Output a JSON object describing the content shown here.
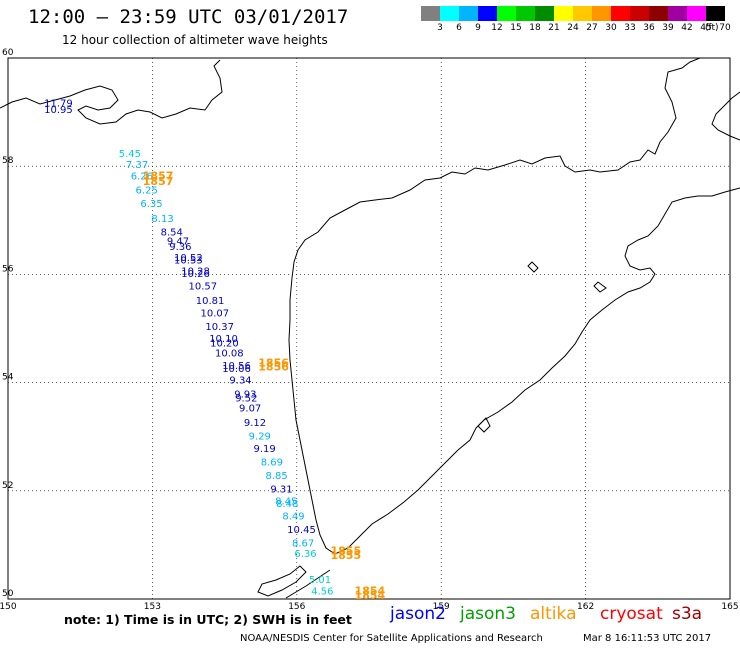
{
  "header": {
    "title": "12:00 — 23:59 UTC 03/01/2017",
    "subtitle": "12 hour collection of altimeter wave heights"
  },
  "color_scale": {
    "unit": "(ft)",
    "steps": [
      {
        "label": "3",
        "color": "#808080"
      },
      {
        "label": "6",
        "color": "#00ffff"
      },
      {
        "label": "9",
        "color": "#00b4ff"
      },
      {
        "label": "12",
        "color": "#0000ff"
      },
      {
        "label": "15",
        "color": "#00ff00"
      },
      {
        "label": "18",
        "color": "#00c800"
      },
      {
        "label": "21",
        "color": "#008c00"
      },
      {
        "label": "24",
        "color": "#ffff00"
      },
      {
        "label": "27",
        "color": "#ffc800"
      },
      {
        "label": "30",
        "color": "#ff9600"
      },
      {
        "label": "33",
        "color": "#ff0000"
      },
      {
        "label": "36",
        "color": "#c80000"
      },
      {
        "label": "39",
        "color": "#8c0000"
      },
      {
        "label": "42",
        "color": "#a000a0"
      },
      {
        "label": "45",
        "color": "#ff00ff"
      },
      {
        "label": "70",
        "color": "#000000"
      }
    ]
  },
  "map": {
    "lon_ticks": [
      "150",
      "153",
      "156",
      "159",
      "162",
      "165"
    ],
    "lat_ticks": [
      "50",
      "52",
      "54",
      "56",
      "58",
      "60"
    ],
    "lon_range": [
      150,
      165
    ],
    "lat_range": [
      50,
      60
    ],
    "grid": "dotted",
    "observations": [
      {
        "text": "11.79",
        "lon": 150.75,
        "lat": 59.1,
        "color": "#0000c8"
      },
      {
        "text": "10.95",
        "lon": 150.75,
        "lat": 58.98,
        "color": "#0000c8"
      },
      {
        "text": "5.45",
        "lon": 152.3,
        "lat": 58.17,
        "color": "#00d2d2"
      },
      {
        "text": "7.37",
        "lon": 152.45,
        "lat": 57.97,
        "color": "#00b4ff"
      },
      {
        "text": "6.26",
        "lon": 152.55,
        "lat": 57.75,
        "color": "#00b4ff"
      },
      {
        "text": "6.25",
        "lon": 152.65,
        "lat": 57.5,
        "color": "#00b4ff"
      },
      {
        "text": "6.35",
        "lon": 152.75,
        "lat": 57.25,
        "color": "#00b4ff"
      },
      {
        "text": "8.13",
        "lon": 152.98,
        "lat": 56.97,
        "color": "#00b4ff"
      },
      {
        "text": "8.54",
        "lon": 153.17,
        "lat": 56.72,
        "color": "#0000c8"
      },
      {
        "text": "9.36",
        "lon": 153.35,
        "lat": 56.45,
        "color": "#0000c8"
      },
      {
        "text": "9.47",
        "lon": 153.3,
        "lat": 56.55,
        "color": "#0000c8"
      },
      {
        "text": "10.53",
        "lon": 153.45,
        "lat": 56.2,
        "color": "#0000c8"
      },
      {
        "text": "10.52",
        "lon": 153.45,
        "lat": 56.25,
        "color": "#0000c8"
      },
      {
        "text": "10.26",
        "lon": 153.6,
        "lat": 55.95,
        "color": "#0000c8"
      },
      {
        "text": "10.28",
        "lon": 153.6,
        "lat": 56.0,
        "color": "#0000c8"
      },
      {
        "text": "10.57",
        "lon": 153.75,
        "lat": 55.72,
        "color": "#0000c8"
      },
      {
        "text": "10.81",
        "lon": 153.9,
        "lat": 55.45,
        "color": "#0000c8"
      },
      {
        "text": "10.07",
        "lon": 154.0,
        "lat": 55.22,
        "color": "#0000c8"
      },
      {
        "text": "10.37",
        "lon": 154.1,
        "lat": 54.97,
        "color": "#0000c8"
      },
      {
        "text": "10.10",
        "lon": 154.18,
        "lat": 54.75,
        "color": "#0000c8"
      },
      {
        "text": "10.20",
        "lon": 154.2,
        "lat": 54.67,
        "color": "#0000c8"
      },
      {
        "text": "10.08",
        "lon": 154.3,
        "lat": 54.48,
        "color": "#0000c8"
      },
      {
        "text": "10.56",
        "lon": 154.45,
        "lat": 54.25,
        "color": "#0000c8"
      },
      {
        "text": "10.06",
        "lon": 154.45,
        "lat": 54.2,
        "color": "#0000c8"
      },
      {
        "text": "9.34",
        "lon": 154.6,
        "lat": 53.98,
        "color": "#0000c8"
      },
      {
        "text": "9.93",
        "lon": 154.7,
        "lat": 53.72,
        "color": "#0000c8"
      },
      {
        "text": "9.52",
        "lon": 154.72,
        "lat": 53.65,
        "color": "#0000c8"
      },
      {
        "text": "9.07",
        "lon": 154.8,
        "lat": 53.47,
        "color": "#0000c8"
      },
      {
        "text": "9.12",
        "lon": 154.9,
        "lat": 53.2,
        "color": "#0000c8"
      },
      {
        "text": "9.29",
        "lon": 155.0,
        "lat": 52.95,
        "color": "#00b4ff"
      },
      {
        "text": "9.19",
        "lon": 155.1,
        "lat": 52.72,
        "color": "#0000c8"
      },
      {
        "text": "8.69",
        "lon": 155.25,
        "lat": 52.47,
        "color": "#00b4ff"
      },
      {
        "text": "8.85",
        "lon": 155.35,
        "lat": 52.22,
        "color": "#00b4ff"
      },
      {
        "text": "9.31",
        "lon": 155.45,
        "lat": 51.97,
        "color": "#0000c8"
      },
      {
        "text": "8.45",
        "lon": 155.55,
        "lat": 51.75,
        "color": "#00b4ff"
      },
      {
        "text": "8.48",
        "lon": 155.57,
        "lat": 51.7,
        "color": "#00b4ff"
      },
      {
        "text": "8.49",
        "lon": 155.7,
        "lat": 51.47,
        "color": "#00b4ff"
      },
      {
        "text": "10.45",
        "lon": 155.8,
        "lat": 51.22,
        "color": "#0000c8"
      },
      {
        "text": "8.67",
        "lon": 155.9,
        "lat": 50.97,
        "color": "#00b4ff"
      },
      {
        "text": "6.36",
        "lon": 155.95,
        "lat": 50.78,
        "color": "#00d2d2"
      },
      {
        "text": "5.01",
        "lon": 156.25,
        "lat": 50.3,
        "color": "#00d2d2"
      },
      {
        "text": "4.56",
        "lon": 156.3,
        "lat": 50.08,
        "color": "#00d2d2"
      },
      {
        "text": "1857",
        "lon": 152.8,
        "lat": 57.75,
        "color": "#ff9600",
        "bold": true
      },
      {
        "text": "1857",
        "lon": 152.8,
        "lat": 57.65,
        "color": "#ff9600",
        "bold": true
      },
      {
        "text": "1856",
        "lon": 155.2,
        "lat": 54.3,
        "color": "#ff9600",
        "bold": true
      },
      {
        "text": "1856",
        "lon": 155.2,
        "lat": 54.22,
        "color": "#ff9600",
        "bold": true
      },
      {
        "text": "1855",
        "lon": 156.7,
        "lat": 50.82,
        "color": "#ff9600",
        "bold": true
      },
      {
        "text": "1855",
        "lon": 156.7,
        "lat": 50.74,
        "color": "#ff9600",
        "bold": true
      },
      {
        "text": "1854",
        "lon": 157.2,
        "lat": 50.08,
        "color": "#ff9600",
        "bold": true
      },
      {
        "text": "1854",
        "lon": 157.2,
        "lat": 50.0,
        "color": "#ff9600",
        "bold": true
      }
    ]
  },
  "footer": {
    "note": "note: 1) Time is in UTC; 2) SWH is in feet",
    "satellites": [
      {
        "name": "jason2",
        "color": "#0000ff"
      },
      {
        "name": "jason3",
        "color": "#00a000"
      },
      {
        "name": "altika",
        "color": "#ff9600"
      },
      {
        "name": "cryosat",
        "color": "#ff0000"
      },
      {
        "name": "s3a",
        "color": "#a00000"
      }
    ],
    "credit": "NOAA/NESDIS Center for Satellite Applications and Research",
    "timestamp": "Mar  8 16:11:53 UTC 2017"
  }
}
